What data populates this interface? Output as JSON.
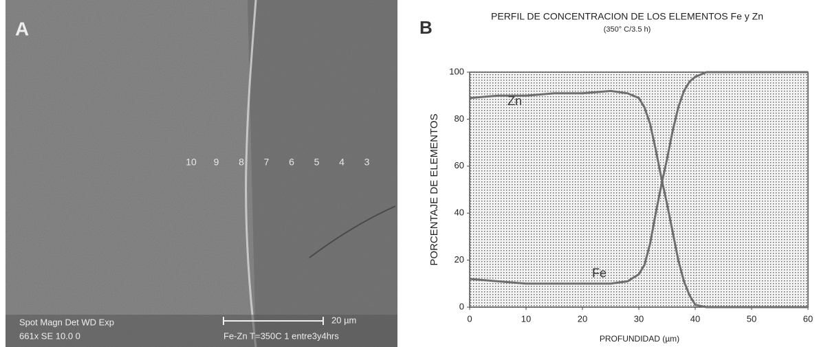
{
  "panel_a": {
    "label": "A",
    "point_labels": [
      "10",
      "9",
      "8",
      "7",
      "6",
      "5",
      "4",
      "3"
    ],
    "info_top": "Spot Magn   Det  WD  Exp",
    "info_bottom": "661x   SE  10.0  0",
    "scale": "20 µm",
    "sample": "Fe-Zn T=350C 1 entre3y4hrs"
  },
  "chart_data": {
    "type": "line",
    "panel_label": "B",
    "title": "PERFIL DE CONCENTRACION DE LOS ELEMENTOS Fe y Zn",
    "subtitle": "(350° C/3.5 h)",
    "x_label": "PROFUNDIDAD (µm)",
    "y_label": "PORCENTAJE DE ELEMENTOS",
    "x": [
      0,
      5,
      10,
      15,
      20,
      25,
      28,
      30,
      31,
      32,
      33,
      34,
      35,
      36,
      37,
      38,
      39,
      40,
      42,
      45,
      50,
      55,
      60
    ],
    "series": [
      {
        "name": "Zn",
        "color": "#6e6e6e",
        "values": [
          89,
          90,
          90,
          91,
          91,
          92,
          91,
          89,
          85,
          78,
          67,
          55,
          44,
          32,
          20,
          11,
          5,
          1,
          0,
          0,
          0,
          0,
          0
        ]
      },
      {
        "name": "Fe",
        "color": "#6e6e6e",
        "values": [
          12,
          11,
          10,
          10,
          10,
          10,
          11,
          14,
          18,
          27,
          40,
          52,
          63,
          75,
          85,
          92,
          96,
          98,
          100,
          100,
          100,
          100,
          100
        ]
      }
    ],
    "xlim": [
      0,
      60
    ],
    "xticks": [
      0,
      10,
      20,
      30,
      40,
      50,
      60
    ],
    "ylim": [
      0,
      100
    ],
    "yticks": [
      0,
      20,
      40,
      60,
      80,
      100
    ],
    "grid": true
  }
}
